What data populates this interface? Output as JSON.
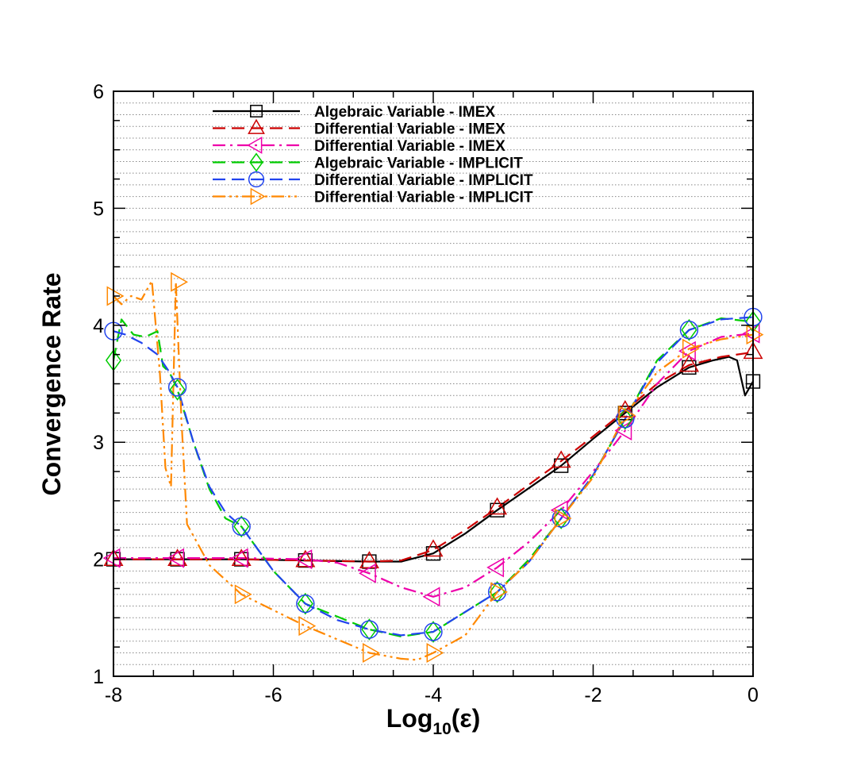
{
  "chart_data": {
    "type": "line",
    "title": "",
    "xlabel": "Log10(ε)",
    "xlabel_parts": {
      "base": "Log",
      "sub": "10",
      "arg": "(ε)"
    },
    "ylabel": "Convergence Rate",
    "xlim": [
      -8,
      0
    ],
    "ylim": [
      1,
      6
    ],
    "x_ticks": [
      -8,
      -6,
      -4,
      -2,
      0
    ],
    "x_tick_labels": [
      "-8",
      "-6",
      "-4",
      "-2",
      "0"
    ],
    "y_ticks": [
      1,
      2,
      3,
      4,
      5,
      6
    ],
    "y_tick_labels": [
      "1",
      "2",
      "3",
      "4",
      "5",
      "6"
    ],
    "grid": "horizontal-dotted",
    "legend_position": "top-center",
    "series": [
      {
        "name": "Algebraic Variable - IMEX",
        "color": "#000000",
        "dash": "solid",
        "marker": "square",
        "x": [
          -8,
          -7.2,
          -6.4,
          -5.6,
          -4.8,
          -4.4,
          -4.0,
          -3.6,
          -3.2,
          -2.8,
          -2.4,
          -2.0,
          -1.6,
          -1.2,
          -0.8,
          -0.5,
          -0.3,
          -0.2,
          -0.1,
          0
        ],
        "y": [
          2.0,
          2.0,
          2.0,
          1.99,
          1.98,
          1.98,
          2.05,
          2.22,
          2.42,
          2.61,
          2.8,
          3.03,
          3.25,
          3.47,
          3.64,
          3.7,
          3.73,
          3.7,
          3.4,
          3.52
        ],
        "marker_x": [
          -8,
          -7.2,
          -6.4,
          -5.6,
          -4.8,
          -4.0,
          -3.2,
          -2.4,
          -1.6,
          -0.8,
          0
        ],
        "marker_y": [
          2.0,
          2.0,
          2.0,
          1.99,
          1.98,
          2.05,
          2.42,
          2.8,
          3.25,
          3.64,
          3.52
        ]
      },
      {
        "name": "Differential Variable - IMEX",
        "color": "#cc0000",
        "dash": "dashed",
        "marker": "triangle-up",
        "x": [
          -8,
          -7.2,
          -6.4,
          -5.6,
          -4.8,
          -4.4,
          -4.0,
          -3.6,
          -3.2,
          -2.8,
          -2.4,
          -2.0,
          -1.6,
          -1.2,
          -0.8,
          -0.4,
          0
        ],
        "y": [
          2.0,
          2.0,
          2.0,
          1.99,
          1.98,
          1.99,
          2.08,
          2.25,
          2.44,
          2.64,
          2.84,
          3.05,
          3.27,
          3.5,
          3.66,
          3.73,
          3.77
        ],
        "marker_x": [
          -8,
          -7.2,
          -6.4,
          -5.6,
          -4.8,
          -4.0,
          -3.2,
          -2.4,
          -1.6,
          -0.8,
          0
        ],
        "marker_y": [
          2.0,
          2.0,
          2.0,
          1.99,
          1.98,
          2.08,
          2.44,
          2.84,
          3.27,
          3.66,
          3.77
        ]
      },
      {
        "name": "Differential Variable - IMEX",
        "color": "#ee00aa",
        "dash": "dashdot",
        "marker": "triangle-left",
        "x": [
          -8,
          -7.2,
          -6.4,
          -5.6,
          -5.2,
          -4.8,
          -4.4,
          -4.0,
          -3.6,
          -3.2,
          -2.8,
          -2.4,
          -2.0,
          -1.6,
          -1.2,
          -0.8,
          -0.4,
          0
        ],
        "y": [
          2.01,
          2.01,
          2.01,
          2.0,
          1.97,
          1.88,
          1.76,
          1.68,
          1.76,
          1.93,
          2.15,
          2.42,
          2.75,
          3.1,
          3.5,
          3.78,
          3.9,
          3.93
        ],
        "marker_x": [
          -8,
          -7.2,
          -6.4,
          -5.6,
          -4.8,
          -4.0,
          -3.2,
          -2.4,
          -1.6,
          -0.8,
          0
        ],
        "marker_y": [
          2.01,
          2.01,
          2.01,
          2.0,
          1.88,
          1.68,
          1.93,
          2.42,
          3.1,
          3.78,
          3.93
        ]
      },
      {
        "name": "Algebraic Variable - IMPLICIT",
        "color": "#00cc00",
        "dash": "dashed",
        "marker": "diamond",
        "x": [
          -8,
          -7.9,
          -7.75,
          -7.6,
          -7.45,
          -7.38,
          -7.3,
          -7.2,
          -7.0,
          -6.8,
          -6.6,
          -6.4,
          -6.0,
          -5.6,
          -4.8,
          -4.4,
          -4.0,
          -3.6,
          -3.2,
          -2.8,
          -2.4,
          -2.0,
          -1.6,
          -1.2,
          -0.8,
          -0.4,
          0
        ],
        "y": [
          3.7,
          4.05,
          3.92,
          3.9,
          3.95,
          3.65,
          3.6,
          3.45,
          3.0,
          2.6,
          2.35,
          2.28,
          1.9,
          1.62,
          1.4,
          1.34,
          1.38,
          1.55,
          1.72,
          2.0,
          2.35,
          2.72,
          3.2,
          3.7,
          3.96,
          4.06,
          4.03
        ],
        "marker_x": [
          -8,
          -7.2,
          -6.4,
          -5.6,
          -4.8,
          -4.0,
          -3.2,
          -2.4,
          -1.6,
          -0.8,
          0
        ],
        "marker_y": [
          3.7,
          3.45,
          2.28,
          1.62,
          1.4,
          1.38,
          1.72,
          2.35,
          3.2,
          3.96,
          4.03
        ]
      },
      {
        "name": "Differential Variable - IMPLICIT",
        "color": "#2244ee",
        "dash": "dashed",
        "marker": "circle",
        "x": [
          -8,
          -7.85,
          -7.65,
          -7.45,
          -7.3,
          -7.2,
          -7.0,
          -6.8,
          -6.6,
          -6.4,
          -6.0,
          -5.6,
          -5.2,
          -4.8,
          -4.4,
          -4.0,
          -3.6,
          -3.2,
          -2.8,
          -2.4,
          -2.0,
          -1.6,
          -1.2,
          -0.8,
          -0.4,
          0
        ],
        "y": [
          3.95,
          3.92,
          3.85,
          3.75,
          3.6,
          3.47,
          3.0,
          2.62,
          2.4,
          2.28,
          1.9,
          1.62,
          1.48,
          1.4,
          1.35,
          1.38,
          1.55,
          1.72,
          1.98,
          2.35,
          2.72,
          3.2,
          3.68,
          3.96,
          4.05,
          4.07
        ],
        "marker_x": [
          -8,
          -7.2,
          -6.4,
          -5.6,
          -4.8,
          -4.0,
          -3.2,
          -2.4,
          -1.6,
          -0.8,
          0
        ],
        "marker_y": [
          3.95,
          3.47,
          2.28,
          1.62,
          1.4,
          1.38,
          1.72,
          2.35,
          3.2,
          3.96,
          4.07
        ]
      },
      {
        "name": "Differential Variable - IMPLICIT",
        "color": "#ff8800",
        "dash": "dashdotdot",
        "marker": "triangle-right",
        "x": [
          -8,
          -7.9,
          -7.78,
          -7.65,
          -7.52,
          -7.42,
          -7.35,
          -7.28,
          -7.22,
          -7.15,
          -7.08,
          -6.8,
          -6.4,
          -5.6,
          -4.8,
          -4.4,
          -4.2,
          -4.0,
          -3.6,
          -3.2,
          -2.8,
          -2.4,
          -2.0,
          -1.6,
          -1.2,
          -0.8,
          -0.4,
          0
        ],
        "y": [
          4.25,
          4.18,
          4.25,
          4.22,
          4.38,
          3.6,
          2.78,
          2.62,
          4.37,
          3.2,
          2.3,
          1.95,
          1.7,
          1.43,
          1.2,
          1.15,
          1.14,
          1.2,
          1.35,
          1.72,
          1.98,
          2.35,
          2.7,
          3.23,
          3.6,
          3.8,
          3.88,
          3.92
        ],
        "marker_x": [
          -8,
          -7.2,
          -6.4,
          -5.6,
          -4.8,
          -4.0,
          -3.2,
          -2.4,
          -1.6,
          -0.8,
          0
        ],
        "marker_y": [
          4.25,
          4.37,
          1.7,
          1.43,
          1.2,
          1.2,
          1.72,
          2.35,
          3.23,
          3.8,
          3.92
        ]
      }
    ]
  }
}
